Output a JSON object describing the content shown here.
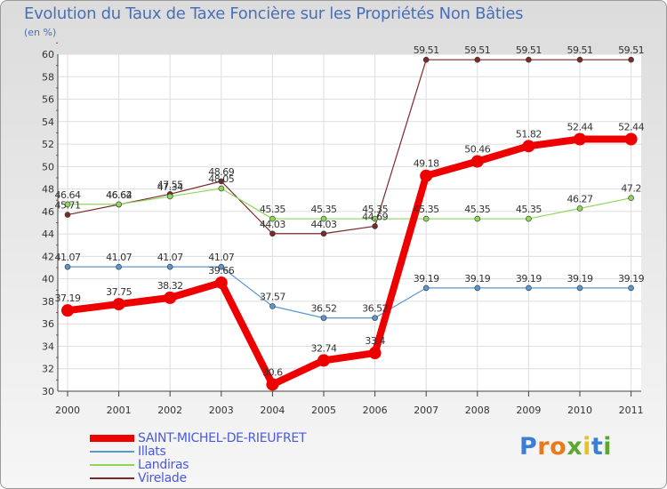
{
  "chart_data": {
    "type": "line",
    "title": "Evolution du Taux de Taxe Foncière sur les Propriétés Non Bâties",
    "ylabel": "(en %)",
    "xlabel": "",
    "categories": [
      "2000",
      "2001",
      "2002",
      "2003",
      "2004",
      "2005",
      "2006",
      "2007",
      "2008",
      "2009",
      "2010",
      "2011"
    ],
    "ylim": [
      30,
      60
    ],
    "yticks": [
      30,
      32,
      34,
      36,
      38,
      40,
      42,
      44,
      46,
      48,
      50,
      52,
      54,
      56,
      58,
      60
    ],
    "series": [
      {
        "name": "SAINT-MICHEL-DE-RIEUFRET",
        "color": "#ee0000",
        "values": [
          37.19,
          37.75,
          38.32,
          39.66,
          30.6,
          32.74,
          33.4,
          49.18,
          50.46,
          51.82,
          52.44,
          52.44
        ],
        "labels": [
          "37.19",
          "37.75",
          "38.32",
          "39.66",
          "30.6",
          "32.74",
          "33.4",
          "49.18",
          "50.46",
          "51.82",
          "52.44",
          "52.44"
        ]
      },
      {
        "name": "Illats",
        "color": "#5a97d0",
        "values": [
          41.07,
          41.07,
          41.07,
          41.07,
          37.57,
          36.52,
          36.52,
          39.19,
          39.19,
          39.19,
          39.19,
          39.19
        ],
        "labels": [
          "41.07",
          "41.07",
          "41.07",
          "41.07",
          "37.57",
          "36.52",
          "36.52",
          "39.19",
          "39.19",
          "39.19",
          "39.19",
          "39.19"
        ]
      },
      {
        "name": "Landiras",
        "color": "#8ed65a",
        "values": [
          46.64,
          46.64,
          47.34,
          48.05,
          45.35,
          45.35,
          45.35,
          45.35,
          45.35,
          45.35,
          46.27,
          47.2
        ],
        "labels": [
          "46.64",
          "46.64",
          "47.34",
          "48.05",
          "45.35",
          "45.35",
          "45.35",
          "45.35",
          "45.35",
          "45.35",
          "46.27",
          "47.2"
        ]
      },
      {
        "name": "Virelade",
        "color": "#7a2a2a",
        "values": [
          45.71,
          46.62,
          47.55,
          48.69,
          44.03,
          44.03,
          44.69,
          59.51,
          59.51,
          59.51,
          59.51,
          59.51
        ],
        "labels": [
          "45.71",
          "46.62",
          "47.55",
          "48.69",
          "44.03",
          "44.03",
          "44.69",
          "59.51",
          "59.51",
          "59.51",
          "59.51",
          "59.51"
        ]
      }
    ],
    "legend_position": "bottom-left"
  },
  "logo": {
    "text": "Proxiti"
  }
}
